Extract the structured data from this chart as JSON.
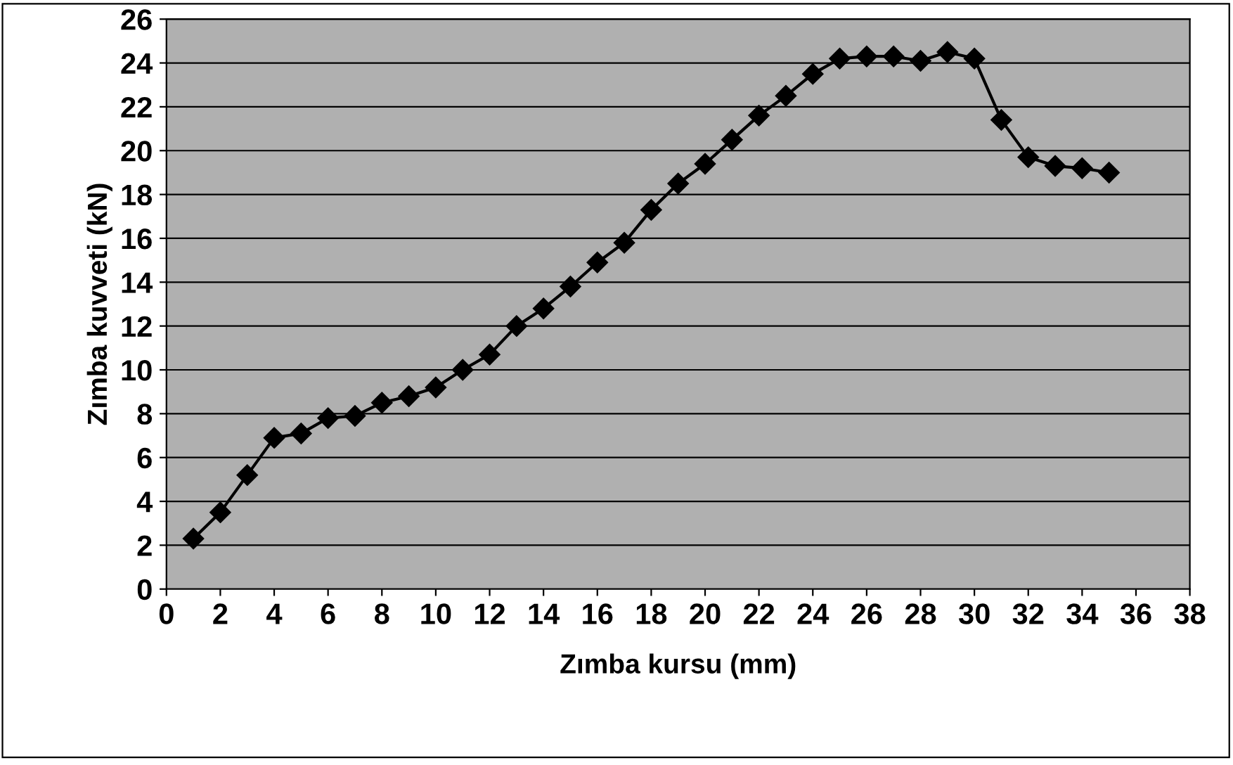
{
  "chart_data": {
    "type": "line",
    "xlabel": "Zımba kursu (mm)",
    "ylabel": "Zımba kuvveti (kN)",
    "x": [
      1,
      2,
      3,
      4,
      5,
      6,
      7,
      8,
      9,
      10,
      11,
      12,
      13,
      14,
      15,
      16,
      17,
      18,
      19,
      20,
      21,
      22,
      23,
      24,
      25,
      26,
      27,
      28,
      29,
      30,
      31,
      32,
      33,
      34,
      35
    ],
    "series": [
      {
        "color": "#000000",
        "values": [
          2.3,
          3.5,
          5.2,
          6.9,
          7.1,
          7.8,
          7.9,
          8.5,
          8.8,
          9.2,
          10.0,
          10.7,
          12.0,
          12.8,
          13.8,
          14.9,
          15.8,
          17.3,
          18.5,
          19.4,
          20.5,
          21.6,
          22.5,
          23.5,
          24.2,
          24.3,
          24.3,
          24.1,
          24.5,
          24.2,
          21.4,
          19.7,
          19.3,
          19.2,
          19.0
        ]
      }
    ],
    "xlim": [
      0,
      38
    ],
    "xticks": [
      0,
      2,
      4,
      6,
      8,
      10,
      12,
      14,
      16,
      18,
      20,
      22,
      24,
      26,
      28,
      30,
      32,
      34,
      36,
      38
    ],
    "ylim": [
      0,
      26
    ],
    "yticks": [
      0,
      2,
      4,
      6,
      8,
      10,
      12,
      14,
      16,
      18,
      20,
      22,
      24,
      26
    ],
    "grid": "y",
    "legend": false,
    "marker": "diamond",
    "line_style": "solid"
  }
}
